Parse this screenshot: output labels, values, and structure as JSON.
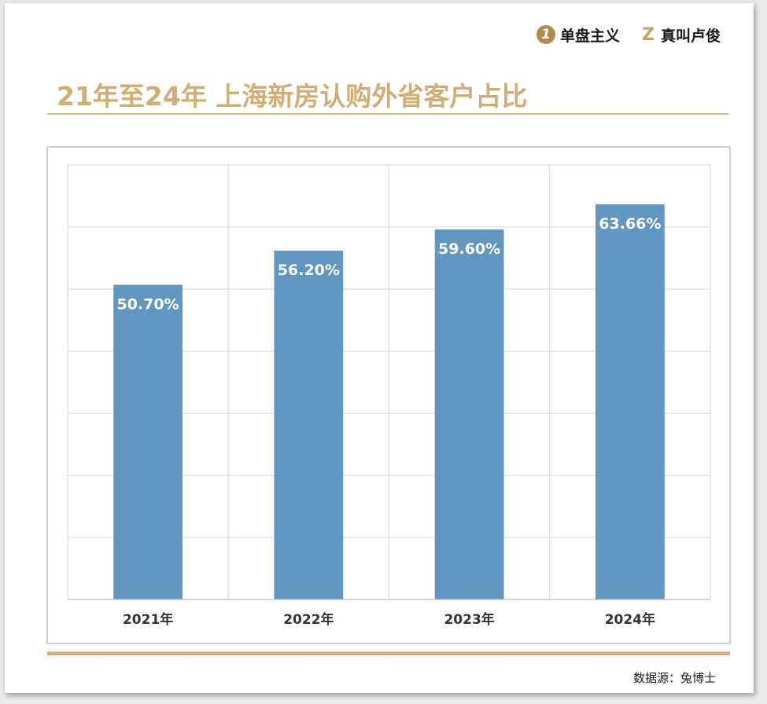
{
  "brand": {
    "logo1_glyph": "1",
    "logo1_text": "单盘主义",
    "logo2_glyph": "Z",
    "logo2_text": "真叫卢俊"
  },
  "title": "21年至24年 上海新房认购外省客户占比",
  "source": "数据源：兔博士",
  "colors": {
    "bar": "#6196c0",
    "title": "#d2ad73",
    "accent_rule": "#d9b883",
    "grid": "#d6d6d6"
  },
  "chart_data": {
    "type": "bar",
    "categories": [
      "2021年",
      "2022年",
      "2023年",
      "2024年"
    ],
    "values": [
      50.7,
      56.2,
      59.6,
      63.66
    ],
    "data_labels": [
      "50.70%",
      "56.20%",
      "59.60%",
      "63.66%"
    ],
    "title": "21年至24年 上海新房认购外省客户占比",
    "xlabel": "",
    "ylabel": "",
    "ylim": [
      0,
      70
    ],
    "grid": true
  }
}
